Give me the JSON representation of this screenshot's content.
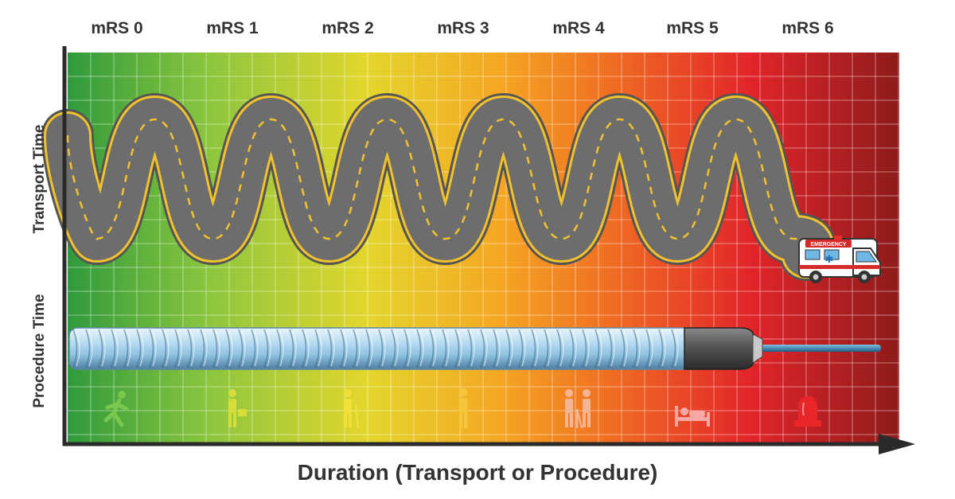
{
  "header": {
    "mrs_labels": [
      "mRS 0",
      "mRS 1",
      "mRS 2",
      "mRS 3",
      "mRS 4",
      "mRS 5",
      "mRS 6"
    ]
  },
  "axes": {
    "y_top_label": "Transport Time",
    "y_bottom_label": "Procedure Time",
    "x_title": "Duration (Transport or Procedure)"
  },
  "ambulance": {
    "sign": "EMERGENCY"
  },
  "icons": [
    "running-person-icon",
    "walking-with-bag-icon",
    "walking-cane-icon",
    "standing-person-icon",
    "walker-with-caregiver-icon",
    "bedridden-person-icon",
    "alarm-siren-icon"
  ],
  "colors": {
    "gradient": [
      "#2f9a3c",
      "#8cc63e",
      "#e3d62c",
      "#f5a623",
      "#ef6a22",
      "#e2252a",
      "#8e1b1b"
    ],
    "road": "#6d6d6d",
    "road_edge": "#f2c12e",
    "catheter": "#a8d4ee"
  }
}
